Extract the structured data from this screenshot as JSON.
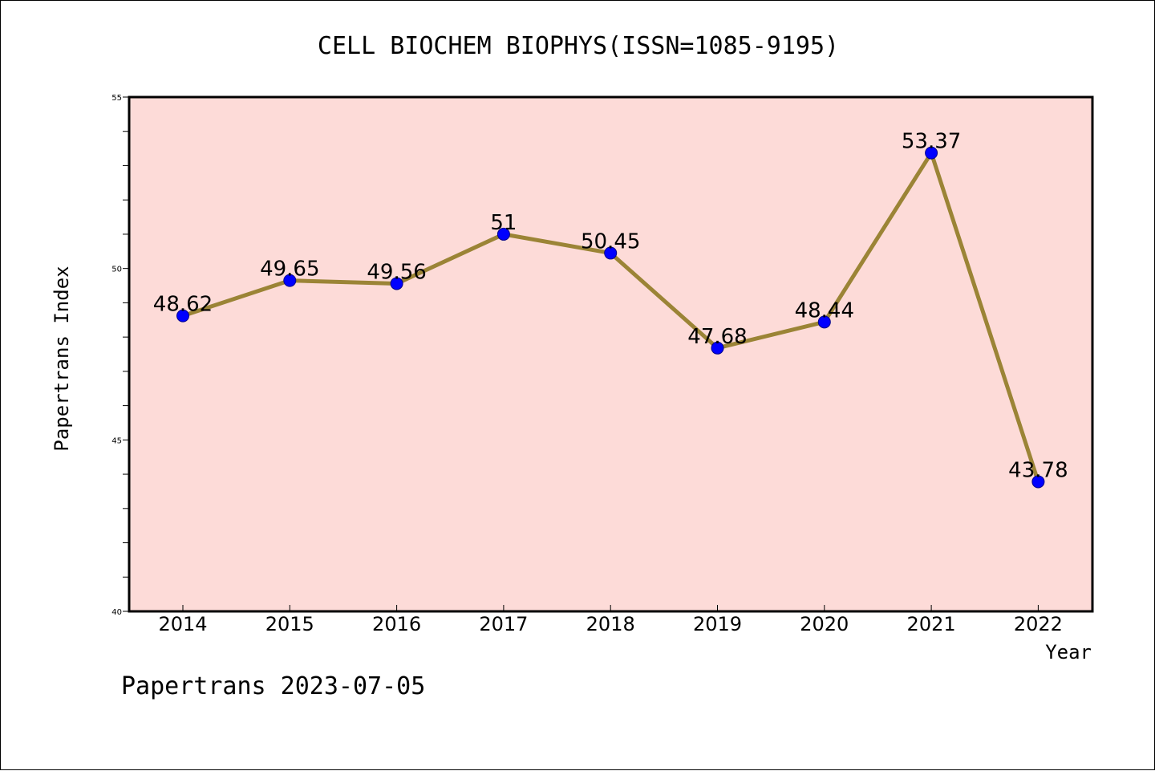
{
  "chart_data": {
    "type": "line",
    "title": "CELL BIOCHEM BIOPHYS(ISSN=1085-9195)",
    "xlabel": "Year",
    "ylabel": "Papertrans Index",
    "categories": [
      "2014",
      "2015",
      "2016",
      "2017",
      "2018",
      "2019",
      "2020",
      "2021",
      "2022"
    ],
    "series": [
      {
        "values": [
          48.62,
          49.65,
          49.56,
          51,
          50.45,
          47.68,
          48.44,
          53.37,
          43.78
        ],
        "labels": [
          "48.62",
          "49.65",
          "49.56",
          "51",
          "50.45",
          "47.68",
          "48.44",
          "53.37",
          "43.78"
        ]
      }
    ],
    "ylim": [
      40,
      55
    ],
    "yticks": [
      "40",
      "45",
      "50",
      "55"
    ],
    "ytick_minor_step": 1,
    "grid": false,
    "colors": {
      "plot_background": "#fddbd8",
      "line": "#9b8436",
      "marker": "#0000ff",
      "marker_edge": "#00008b"
    }
  },
  "footer": {
    "text": "Papertrans 2023-07-05"
  }
}
